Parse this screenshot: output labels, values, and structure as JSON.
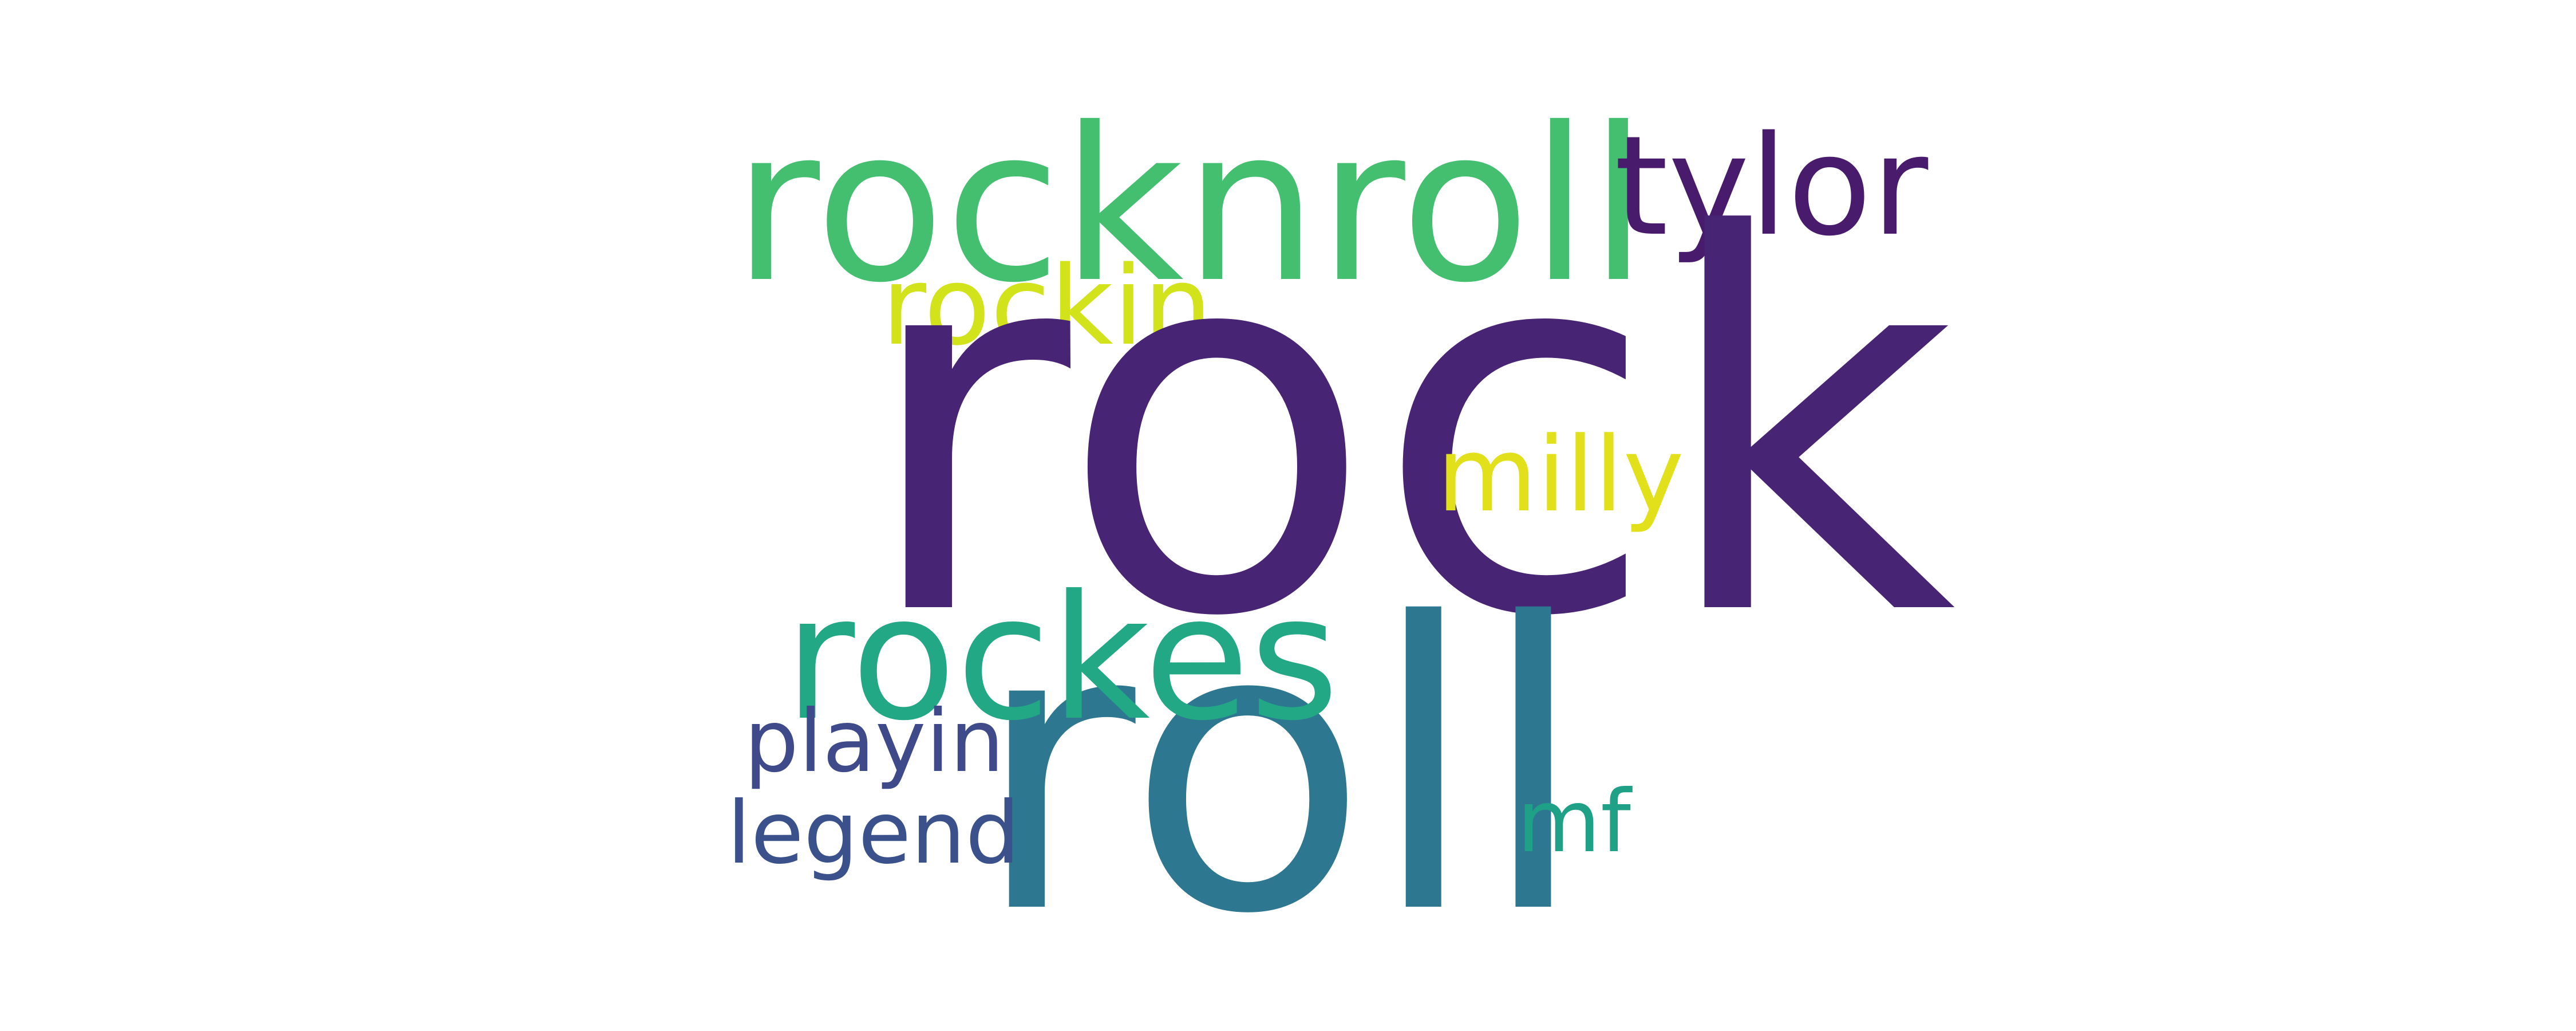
{
  "words": {
    "rock": {
      "text": "rock",
      "color": "#482475"
    },
    "roll": {
      "text": "roll",
      "color": "#2d7790"
    },
    "rocknroll": {
      "text": "rocknroll",
      "color": "#44bf70"
    },
    "rockes": {
      "text": "rockes",
      "color": "#22a884"
    },
    "tylor": {
      "text": "tylor",
      "color": "#481b6d"
    },
    "rockin": {
      "text": "rockin",
      "color": "#d2e21b"
    },
    "milly": {
      "text": "milly",
      "color": "#e1e01a"
    },
    "playin": {
      "text": "playin",
      "color": "#3e4a89"
    },
    "legend": {
      "text": "legend",
      "color": "#3b518b"
    },
    "mf": {
      "text": "mf",
      "color": "#1fa187"
    }
  }
}
